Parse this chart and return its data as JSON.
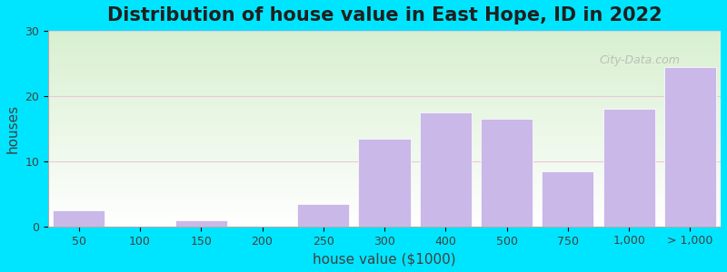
{
  "title": "Distribution of house value in East Hope, ID in 2022",
  "xlabel": "house value ($1000)",
  "ylabel": "houses",
  "bar_labels": [
    "50",
    "100",
    "150",
    "200",
    "250",
    "300",
    "400",
    "500",
    "750",
    "1,000",
    "> 1,000"
  ],
  "bar_values": [
    2.5,
    0,
    1.0,
    0,
    3.5,
    13.5,
    17.5,
    16.5,
    8.5,
    18.0,
    24.5
  ],
  "bar_color": "#c9b8e8",
  "bar_edgecolor": "#ffffff",
  "ylim": [
    0,
    30
  ],
  "yticks": [
    0,
    10,
    20,
    30
  ],
  "background_outer": "#00e5ff",
  "background_inner_top": "#f0fff0",
  "background_inner_bottom": "#e8f5e9",
  "grid_color": "#e8c8d8",
  "title_fontsize": 15,
  "axis_label_fontsize": 11,
  "tick_fontsize": 9,
  "watermark_text": "City-Data.com"
}
